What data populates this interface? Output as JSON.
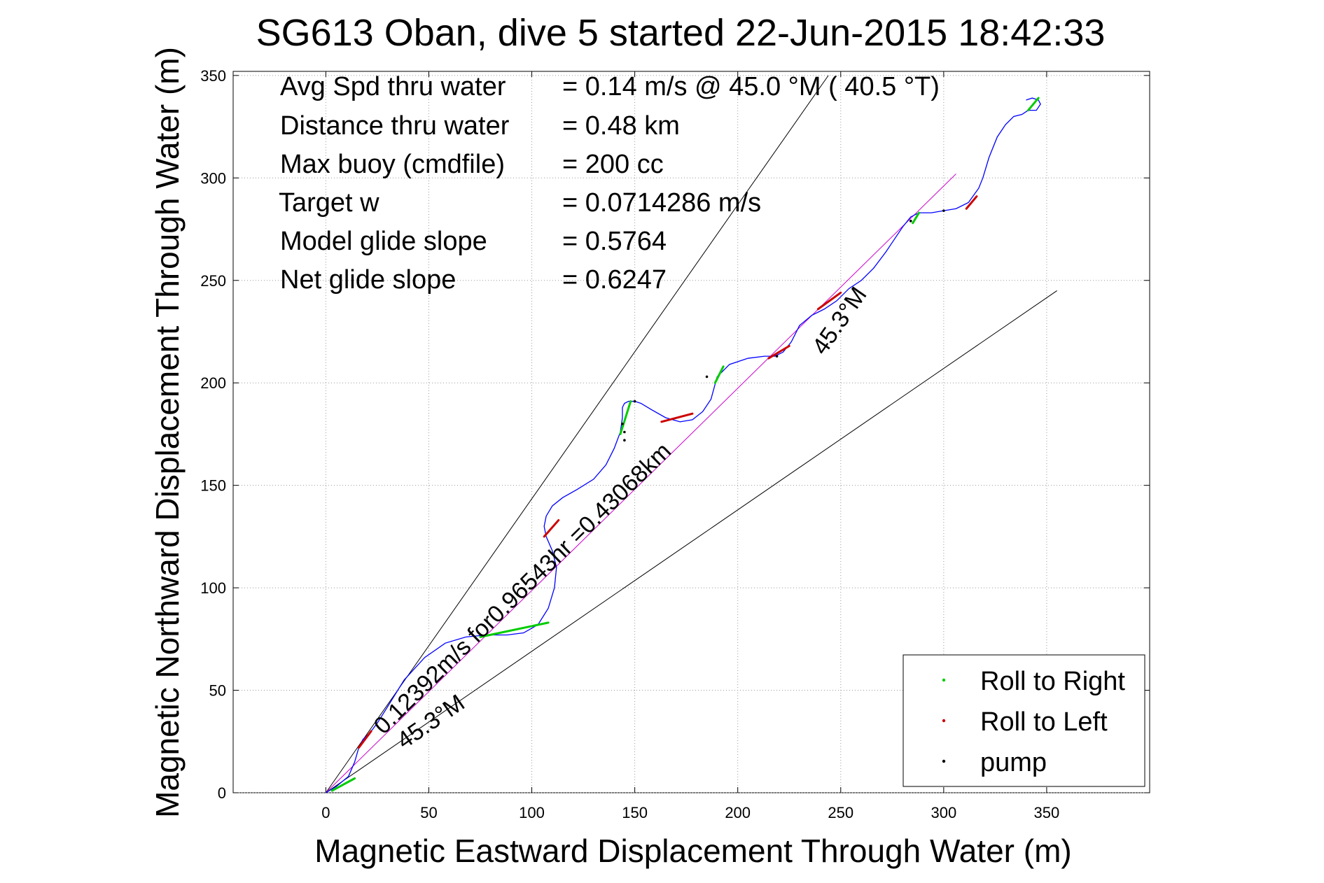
{
  "chart_data": {
    "type": "line",
    "title": "SG613 Oban, dive 5 started 22-Jun-2015 18:42:33",
    "xlabel": "Magnetic Eastward Displacement Through Water (m)",
    "ylabel": "Magnetic Northward Displacement Through Water (m)",
    "xlim": [
      -45,
      400
    ],
    "ylim": [
      0,
      352
    ],
    "xticks": [
      0,
      50,
      100,
      150,
      200,
      250,
      300,
      350
    ],
    "yticks": [
      0,
      50,
      100,
      150,
      200,
      250,
      300,
      350
    ],
    "grid": true,
    "info_lines": [
      {
        "label": "Avg Spd thru water",
        "value": "=  0.14 m/s @  45.0 °M ( 40.5 °T)"
      },
      {
        "label": "Distance thru water",
        "value": "=  0.48 km"
      },
      {
        "label": "Max buoy (cmdfile)",
        "value": "= 200 cc"
      },
      {
        "label": "Target w",
        "value": "= 0.0714286 m/s"
      },
      {
        "label": "Model glide slope",
        "value": "= 0.5764"
      },
      {
        "label": "Net glide slope",
        "value": "= 0.6247"
      }
    ],
    "track": {
      "name": "glider track",
      "color": "#0000ff",
      "x": [
        0,
        5,
        11,
        14,
        16,
        18,
        22,
        25,
        30,
        38,
        48,
        58,
        68,
        78,
        88,
        96,
        103,
        108,
        111,
        112,
        110,
        107,
        106,
        107,
        110,
        115,
        122,
        130,
        136,
        140,
        143,
        144,
        144,
        145,
        147,
        150,
        153,
        158,
        165,
        172,
        178,
        183,
        187,
        190,
        196,
        205,
        213,
        218,
        222,
        226,
        230,
        236,
        242,
        248,
        254,
        260,
        266,
        272,
        276,
        280,
        284,
        288,
        294,
        300,
        306,
        312,
        317,
        319,
        322,
        326,
        330,
        334,
        338,
        341,
        345,
        347,
        346,
        343,
        340
      ],
      "y": [
        0,
        3,
        8,
        15,
        22,
        26,
        30,
        34,
        42,
        55,
        66,
        73,
        76,
        77,
        77,
        78,
        82,
        90,
        100,
        110,
        118,
        125,
        130,
        135,
        140,
        144,
        148,
        153,
        160,
        168,
        176,
        183,
        188,
        190,
        191,
        191,
        190,
        187,
        183,
        181,
        182,
        186,
        192,
        203,
        209,
        212,
        213,
        213,
        215,
        220,
        228,
        233,
        236,
        240,
        246,
        250,
        256,
        264,
        270,
        276,
        281,
        283,
        283,
        284,
        285,
        288,
        295,
        300,
        310,
        320,
        326,
        330,
        331,
        333,
        333,
        336,
        338,
        339,
        338
      ]
    },
    "reference_lines": [
      {
        "name": "upper bound",
        "color": "#000000",
        "x": [
          0,
          244
        ],
        "y": [
          0,
          350
        ]
      },
      {
        "name": "lower bound",
        "color": "#000000",
        "x": [
          0,
          355
        ],
        "y": [
          0,
          245
        ]
      },
      {
        "name": "net track",
        "color": "#cc00cc",
        "x": [
          0,
          306
        ],
        "y": [
          0,
          302
        ]
      }
    ],
    "roll_right_segments": [
      {
        "x": [
          3,
          14
        ],
        "y": [
          1,
          7
        ]
      },
      {
        "x": [
          75,
          108
        ],
        "y": [
          76,
          83
        ]
      },
      {
        "x": [
          143,
          148
        ],
        "y": [
          175,
          191
        ]
      },
      {
        "x": [
          189,
          193
        ],
        "y": [
          200,
          208
        ]
      },
      {
        "x": [
          285,
          288
        ],
        "y": [
          278,
          283
        ]
      },
      {
        "x": [
          341,
          346
        ],
        "y": [
          333,
          339
        ]
      }
    ],
    "roll_left_segments": [
      {
        "x": [
          16,
          22
        ],
        "y": [
          22,
          30
        ]
      },
      {
        "x": [
          106,
          113
        ],
        "y": [
          125,
          133
        ]
      },
      {
        "x": [
          163,
          178
        ],
        "y": [
          181,
          185
        ]
      },
      {
        "x": [
          215,
          225
        ],
        "y": [
          212,
          218
        ]
      },
      {
        "x": [
          239,
          250
        ],
        "y": [
          236,
          244
        ]
      },
      {
        "x": [
          311,
          316
        ],
        "y": [
          285,
          291
        ]
      }
    ],
    "pump_points": {
      "x": [
        145,
        145,
        144,
        150,
        185,
        284,
        300,
        219
      ],
      "y": [
        172,
        176,
        180,
        191,
        203,
        279,
        284,
        213
      ]
    },
    "annotations": [
      {
        "text": "0.12392m/s for0.96543hr =0.43068km",
        "x": 28,
        "y": 28,
        "angle_deg": 44.4
      },
      {
        "text": "45.3°M",
        "x": 38,
        "y": 21,
        "angle_deg": 34.7
      },
      {
        "text": "45.3°M",
        "x": 242,
        "y": 213,
        "angle_deg": 55.1
      }
    ],
    "legend": {
      "position": "bottom-right",
      "entries": [
        {
          "label": "Roll to Right",
          "color": "#00cc00"
        },
        {
          "label": "Roll to Left",
          "color": "#cc0000"
        },
        {
          "label": "pump",
          "color": "#000000"
        }
      ]
    }
  }
}
